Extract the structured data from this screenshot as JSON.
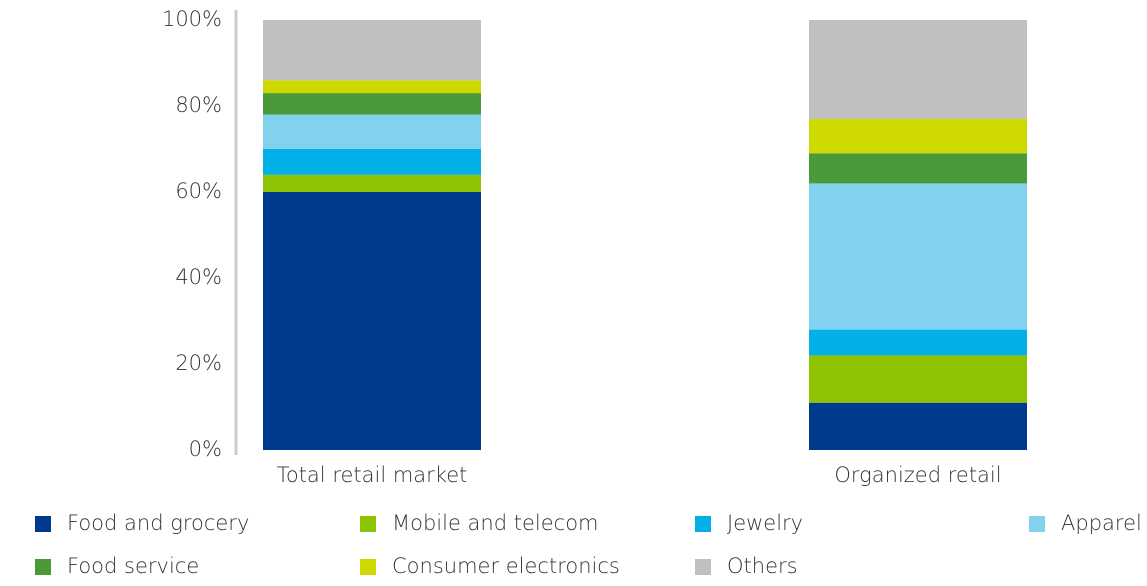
{
  "chart_data": {
    "type": "stacked_bar",
    "categories": [
      "Total retail market",
      "Organized retail"
    ],
    "series": [
      {
        "name": "Food and grocery",
        "color": "#003a8c",
        "values": [
          60,
          11
        ]
      },
      {
        "name": "Mobile and telecom",
        "color": "#8dc300",
        "values": [
          4,
          11
        ]
      },
      {
        "name": "Jewelry",
        "color": "#00b0e6",
        "values": [
          6,
          6
        ]
      },
      {
        "name": "Apparel",
        "color": "#80d2ee",
        "values": [
          8,
          34
        ]
      },
      {
        "name": "Food service",
        "color": "#4a9a3a",
        "values": [
          5,
          7
        ]
      },
      {
        "name": "Consumer electronics",
        "color": "#cdd900",
        "values": [
          3,
          8
        ]
      },
      {
        "name": "Others",
        "color": "#c0c0c0",
        "values": [
          14,
          23
        ]
      }
    ],
    "ylim": [
      0,
      100
    ],
    "yticks": [
      {
        "value": 0,
        "label": "0%"
      },
      {
        "value": 20,
        "label": "20%"
      },
      {
        "value": 40,
        "label": "40%"
      },
      {
        "value": 60,
        "label": "60%"
      },
      {
        "value": 80,
        "label": "80%"
      },
      {
        "value": 100,
        "label": "100%"
      }
    ],
    "grid": false
  }
}
